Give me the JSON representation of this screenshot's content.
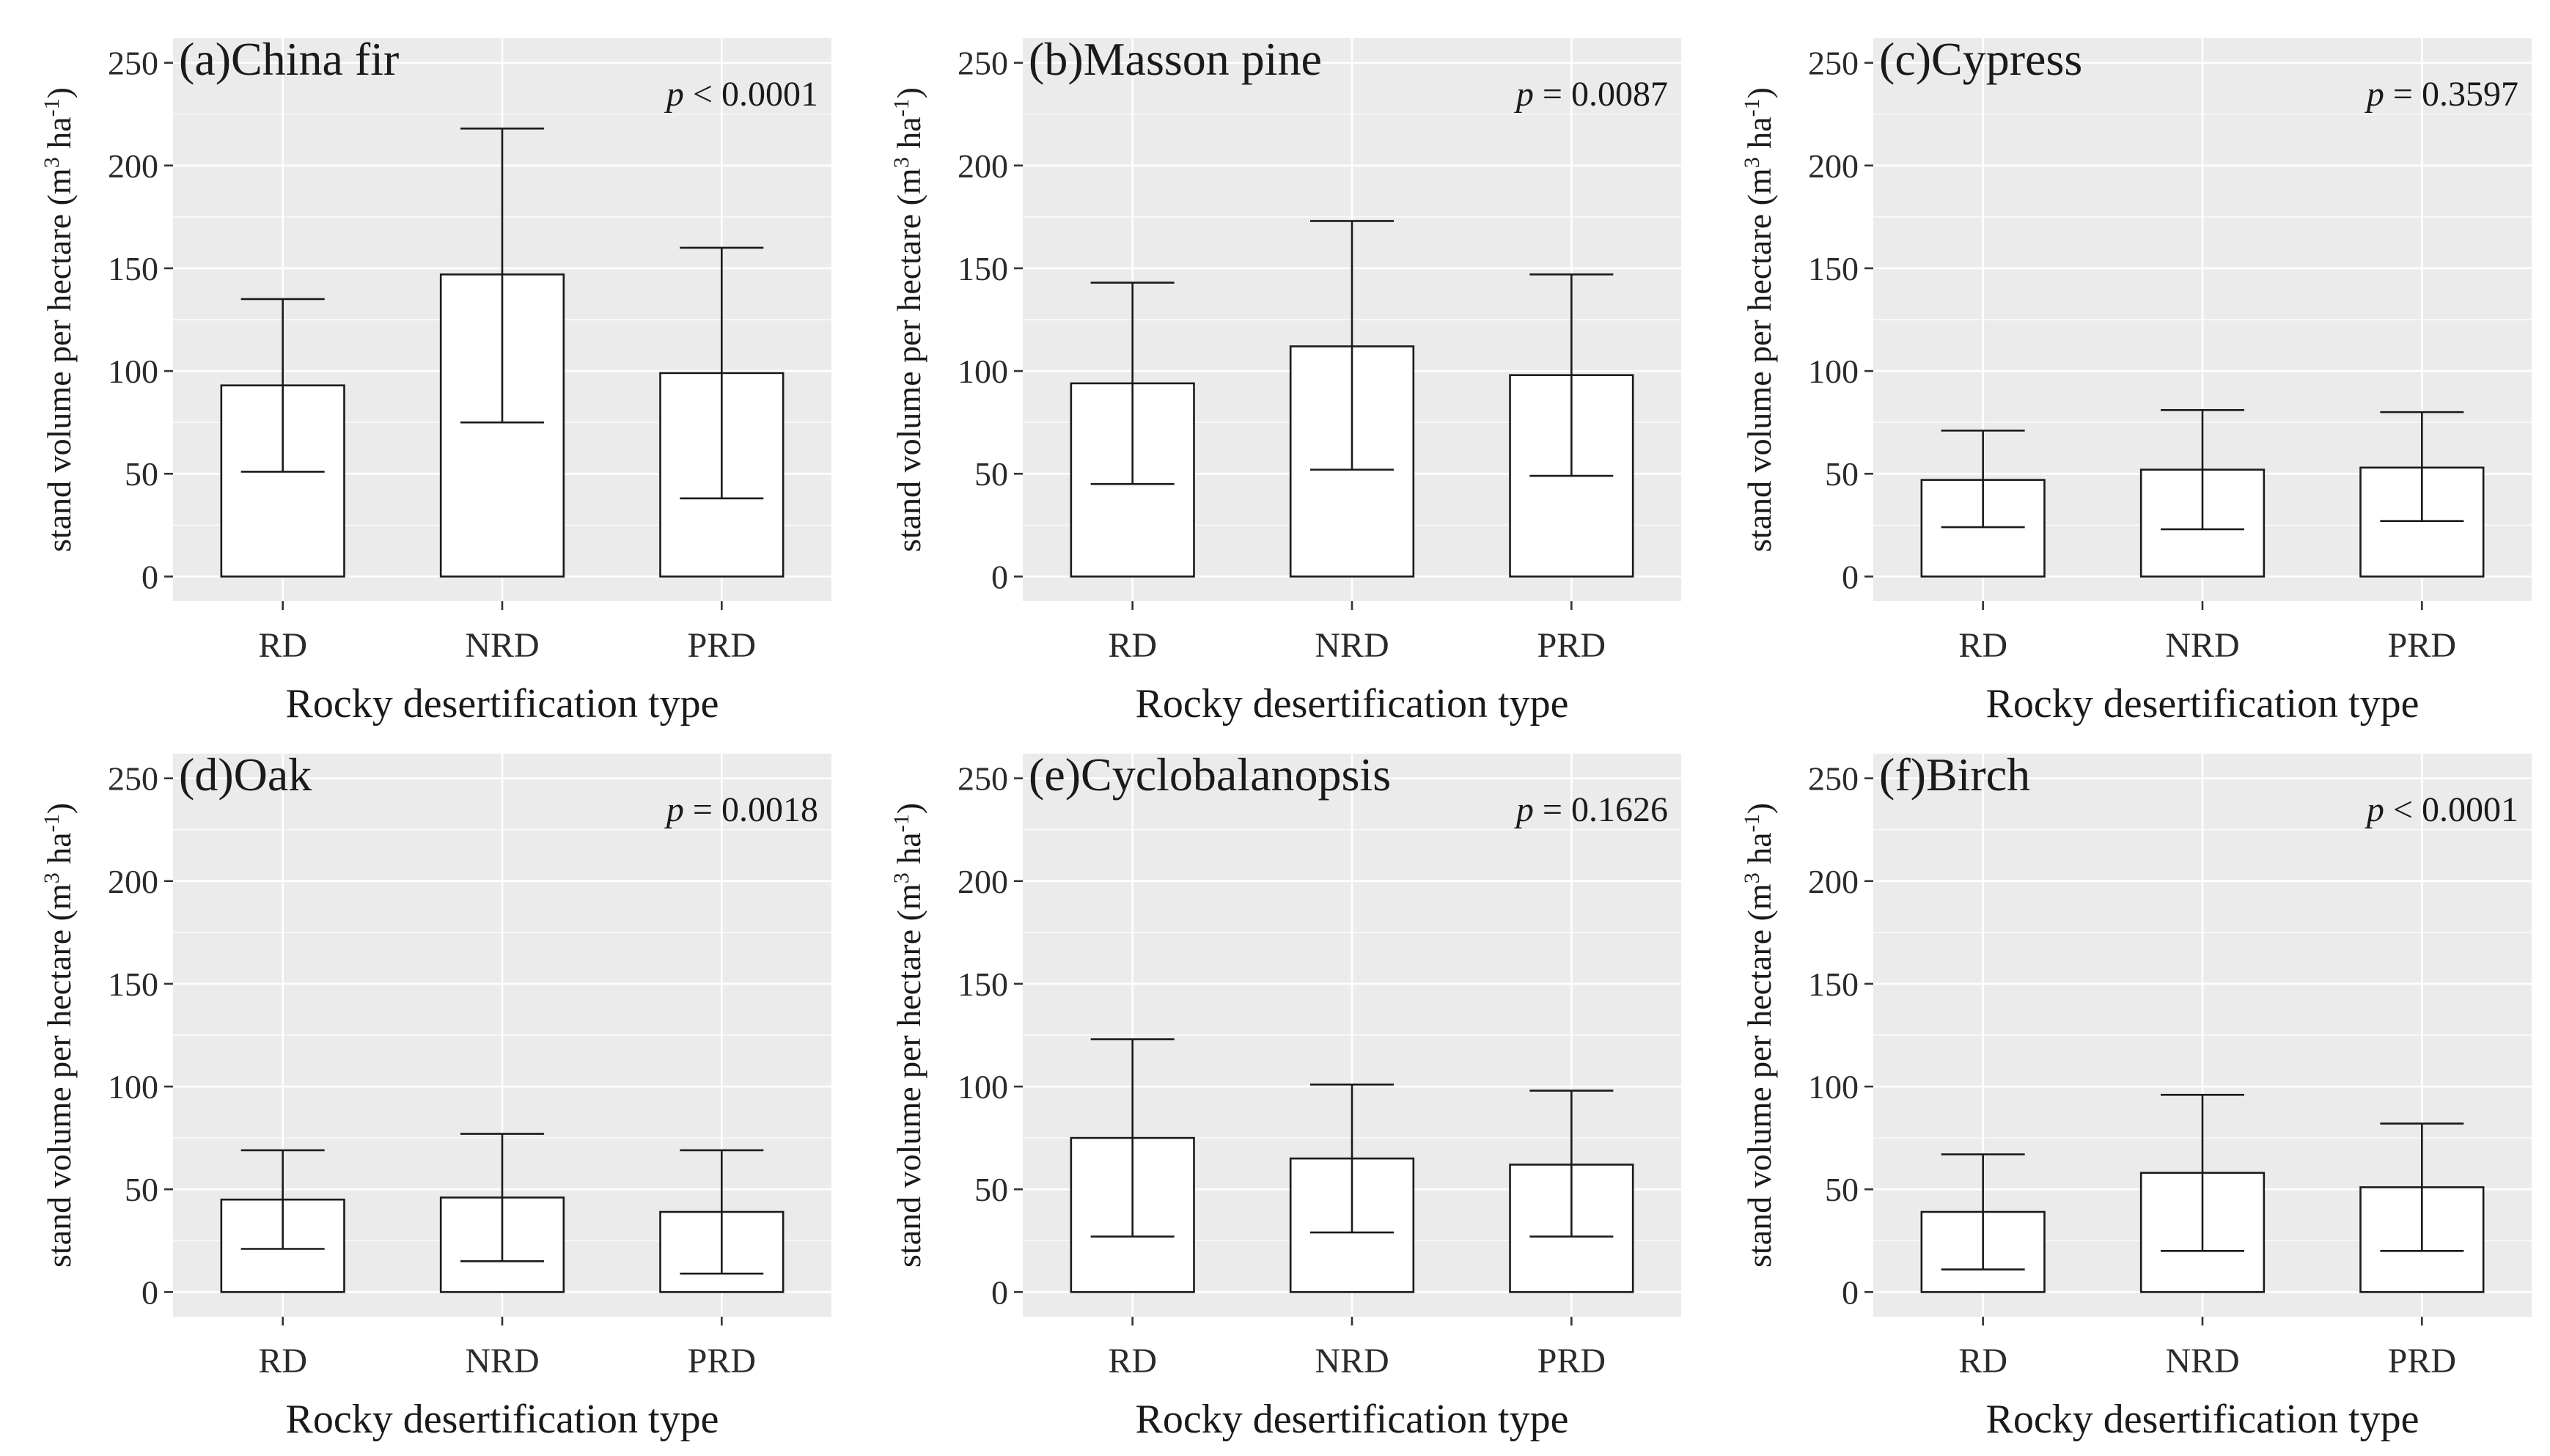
{
  "figure": {
    "xlabel": "Rocky desertification type",
    "ylabel_main": "stand volume per hectare (m",
    "ylabel_sup1": "3",
    "ylabel_mid": " ha",
    "ylabel_sup2": "-1",
    "ylabel_end": ")",
    "p_symbol": "p"
  },
  "chart_data": [
    {
      "type": "bar",
      "title": "(a)China fir",
      "p_text": " < 0.0001",
      "categories": [
        "RD",
        "NRD",
        "PRD"
      ],
      "values": [
        93,
        147,
        99
      ],
      "error_lower": [
        51,
        75,
        38
      ],
      "error_upper": [
        135,
        218,
        160
      ],
      "xlabel": "Rocky desertification type",
      "ylim": [
        -12,
        262
      ],
      "yticks": [
        0,
        50,
        100,
        150,
        200,
        250
      ]
    },
    {
      "type": "bar",
      "title": "(b)Masson pine",
      "p_text": " = 0.0087",
      "categories": [
        "RD",
        "NRD",
        "PRD"
      ],
      "values": [
        94,
        112,
        98
      ],
      "error_lower": [
        45,
        52,
        49
      ],
      "error_upper": [
        143,
        173,
        147
      ],
      "xlabel": "Rocky desertification type",
      "ylim": [
        -12,
        262
      ],
      "yticks": [
        0,
        50,
        100,
        150,
        200,
        250
      ]
    },
    {
      "type": "bar",
      "title": "(c)Cypress",
      "p_text": " = 0.3597",
      "categories": [
        "RD",
        "NRD",
        "PRD"
      ],
      "values": [
        47,
        52,
        53
      ],
      "error_lower": [
        24,
        23,
        27
      ],
      "error_upper": [
        71,
        81,
        80
      ],
      "xlabel": "Rocky desertification type",
      "ylim": [
        -12,
        262
      ],
      "yticks": [
        0,
        50,
        100,
        150,
        200,
        250
      ]
    },
    {
      "type": "bar",
      "title": "(d)Oak",
      "p_text": " = 0.0018",
      "categories": [
        "RD",
        "NRD",
        "PRD"
      ],
      "values": [
        45,
        46,
        39
      ],
      "error_lower": [
        21,
        15,
        9
      ],
      "error_upper": [
        69,
        77,
        69
      ],
      "xlabel": "Rocky desertification type",
      "ylim": [
        -12,
        262
      ],
      "yticks": [
        0,
        50,
        100,
        150,
        200,
        250
      ]
    },
    {
      "type": "bar",
      "title": "(e)Cyclobalanopsis",
      "p_text": " = 0.1626",
      "categories": [
        "RD",
        "NRD",
        "PRD"
      ],
      "values": [
        75,
        65,
        62
      ],
      "error_lower": [
        27,
        29,
        27
      ],
      "error_upper": [
        123,
        101,
        98
      ],
      "xlabel": "Rocky desertification type",
      "ylim": [
        -12,
        262
      ],
      "yticks": [
        0,
        50,
        100,
        150,
        200,
        250
      ]
    },
    {
      "type": "bar",
      "title": "(f)Birch",
      "p_text": " < 0.0001",
      "categories": [
        "RD",
        "NRD",
        "PRD"
      ],
      "values": [
        39,
        58,
        51
      ],
      "error_lower": [
        11,
        20,
        20
      ],
      "error_upper": [
        67,
        96,
        82
      ],
      "xlabel": "Rocky desertification type",
      "ylim": [
        -12,
        262
      ],
      "yticks": [
        0,
        50,
        100,
        150,
        200,
        250
      ]
    }
  ]
}
